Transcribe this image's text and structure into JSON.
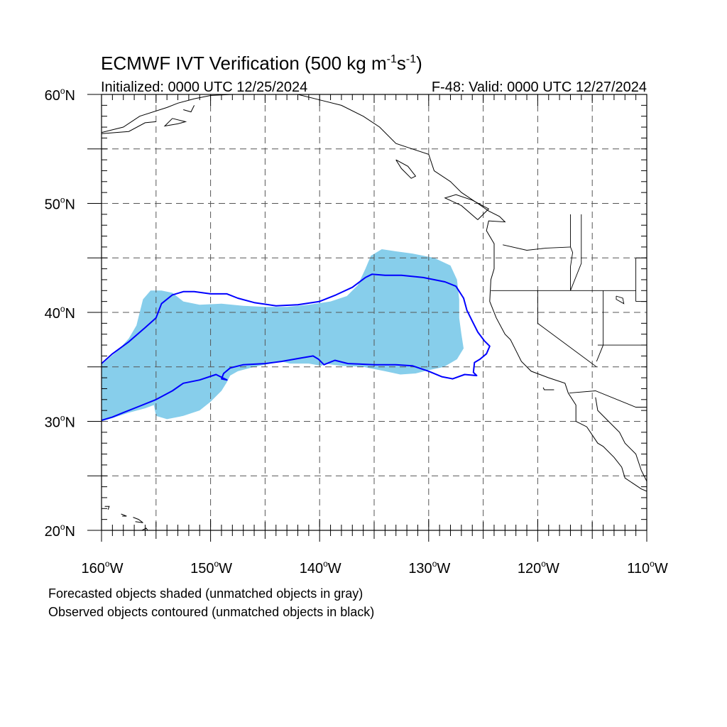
{
  "header": {
    "title_main": "ECMWF IVT Verification (500 kg m",
    "title_sup1": "-1",
    "title_mid": "s",
    "title_sup2": "-1",
    "title_end": ")",
    "init_label": "Initialized: 0000 UTC 12/25/2024",
    "valid_label": "F-48: Valid: 0000 UTC 12/27/2024"
  },
  "map": {
    "lon_range": [
      -160,
      -110
    ],
    "lat_range": [
      20,
      60
    ],
    "lat_ticks": [
      {
        "value": 60,
        "label": "60",
        "suffix": "N"
      },
      {
        "value": 50,
        "label": "50",
        "suffix": "N"
      },
      {
        "value": 40,
        "label": "40",
        "suffix": "N"
      },
      {
        "value": 30,
        "label": "30",
        "suffix": "N"
      },
      {
        "value": 20,
        "label": "20",
        "suffix": "N"
      }
    ],
    "lon_ticks": [
      {
        "value": -160,
        "label": "160",
        "suffix": "W"
      },
      {
        "value": -150,
        "label": "150",
        "suffix": "W"
      },
      {
        "value": -140,
        "label": "140",
        "suffix": "W"
      },
      {
        "value": -130,
        "label": "130",
        "suffix": "W"
      },
      {
        "value": -120,
        "label": "120",
        "suffix": "W"
      },
      {
        "value": -110,
        "label": "110",
        "suffix": "W"
      }
    ],
    "degree_symbol": "o",
    "gridlines_dashed": true,
    "grid_lons": [
      -155,
      -150,
      -145,
      -140,
      -135,
      -130,
      -125,
      -120,
      -115
    ],
    "grid_lats": [
      25,
      30,
      35,
      40,
      45,
      50,
      55
    ],
    "colors": {
      "forecast_fill": "#87ceeb",
      "observed_contour": "#0000ff",
      "coastline": "#000000",
      "grid": "#555555"
    },
    "forecast_object": [
      [
        -160,
        35.2
      ],
      [
        -158.5,
        36.5
      ],
      [
        -157.5,
        37.6
      ],
      [
        -156.8,
        38.8
      ],
      [
        -156.5,
        40
      ],
      [
        -156.2,
        41.2
      ],
      [
        -155.5,
        42
      ],
      [
        -154.5,
        42
      ],
      [
        -153.5,
        41.8
      ],
      [
        -152.5,
        41
      ],
      [
        -151,
        40.7
      ],
      [
        -149,
        40.8
      ],
      [
        -147,
        40.6
      ],
      [
        -145,
        40.5
      ],
      [
        -143,
        40.5
      ],
      [
        -141,
        40.7
      ],
      [
        -139,
        41
      ],
      [
        -137.5,
        41.5
      ],
      [
        -136.5,
        42.5
      ],
      [
        -135.8,
        44
      ],
      [
        -135.3,
        45.2
      ],
      [
        -134.3,
        45.8
      ],
      [
        -133,
        45.6
      ],
      [
        -131.5,
        45.4
      ],
      [
        -129.5,
        45
      ],
      [
        -128,
        44.3
      ],
      [
        -127.4,
        43
      ],
      [
        -127.2,
        41.2
      ],
      [
        -127.2,
        39.5
      ],
      [
        -127,
        38
      ],
      [
        -126.8,
        36.7
      ],
      [
        -127.4,
        35.7
      ],
      [
        -128.6,
        35
      ],
      [
        -130,
        34.7
      ],
      [
        -131.2,
        34.4
      ],
      [
        -132.6,
        34.3
      ],
      [
        -134,
        34.6
      ],
      [
        -136,
        35
      ],
      [
        -138,
        35.1
      ],
      [
        -139.6,
        35.3
      ],
      [
        -139.8,
        35.1
      ],
      [
        -141,
        35.3
      ],
      [
        -142.7,
        35.3
      ],
      [
        -143.5,
        35.5
      ],
      [
        -144.5,
        35.3
      ],
      [
        -146,
        35
      ],
      [
        -147.5,
        34.6
      ],
      [
        -148.2,
        34.2
      ],
      [
        -148.5,
        33.6
      ],
      [
        -149,
        32.8
      ],
      [
        -150,
        31.8
      ],
      [
        -151,
        31
      ],
      [
        -152.5,
        30.5
      ],
      [
        -154,
        30.2
      ],
      [
        -155,
        30.5
      ],
      [
        -155.2,
        31.5
      ],
      [
        -156,
        31.2
      ],
      [
        -157.5,
        30.8
      ],
      [
        -159,
        30.3
      ],
      [
        -160,
        30
      ]
    ],
    "observed_object": [
      [
        -160,
        35.3
      ],
      [
        -159,
        36.2
      ],
      [
        -157.5,
        37.3
      ],
      [
        -156,
        38.6
      ],
      [
        -155,
        39.5
      ],
      [
        -154.5,
        40.8
      ],
      [
        -153.5,
        41.6
      ],
      [
        -152.5,
        41.9
      ],
      [
        -151.5,
        41.9
      ],
      [
        -150,
        41.7
      ],
      [
        -148.5,
        41.7
      ],
      [
        -147.5,
        41.3
      ],
      [
        -146,
        40.9
      ],
      [
        -144,
        40.6
      ],
      [
        -142,
        40.7
      ],
      [
        -140,
        41
      ],
      [
        -138.5,
        41.6
      ],
      [
        -137,
        42.3
      ],
      [
        -135.8,
        43.2
      ],
      [
        -135.2,
        43.5
      ],
      [
        -134,
        43.4
      ],
      [
        -132.5,
        43.4
      ],
      [
        -130.5,
        43.2
      ],
      [
        -128.5,
        42.8
      ],
      [
        -127.5,
        42.4
      ],
      [
        -126.8,
        41.3
      ],
      [
        -126.5,
        40.2
      ],
      [
        -126,
        39.2
      ],
      [
        -125.5,
        38.2
      ],
      [
        -124.9,
        37.4
      ],
      [
        -124.4,
        36.9
      ],
      [
        -124.7,
        36.2
      ],
      [
        -125.3,
        35.7
      ],
      [
        -125.8,
        35.4
      ],
      [
        -125.9,
        34.5
      ],
      [
        -125.6,
        34.2
      ],
      [
        -126.7,
        34.3
      ],
      [
        -127.8,
        33.9
      ],
      [
        -128.8,
        34.1
      ],
      [
        -130,
        34.6
      ],
      [
        -131.5,
        35.1
      ],
      [
        -133,
        35.2
      ],
      [
        -135,
        35.2
      ],
      [
        -137.4,
        35.3
      ],
      [
        -138.6,
        35.6
      ],
      [
        -139.6,
        35.2
      ],
      [
        -140.1,
        35.7
      ],
      [
        -140.6,
        36
      ],
      [
        -141.8,
        35.8
      ],
      [
        -143.5,
        35.5
      ],
      [
        -145,
        35.3
      ],
      [
        -147,
        35.2
      ],
      [
        -148.2,
        34.9
      ],
      [
        -148.8,
        34.4
      ],
      [
        -149,
        33.9
      ],
      [
        -148.5,
        33.8
      ],
      [
        -149.5,
        34.3
      ],
      [
        -151,
        33.8
      ],
      [
        -152.5,
        33.5
      ],
      [
        -153.5,
        32.8
      ],
      [
        -155,
        32
      ],
      [
        -156.5,
        31.4
      ],
      [
        -158,
        30.8
      ],
      [
        -159,
        30.4
      ],
      [
        -160,
        30.1
      ]
    ],
    "states": [
      [
        [
          -123.2,
          46.2
        ],
        [
          -121,
          45.7
        ],
        [
          -119.2,
          45.9
        ],
        [
          -117,
          46
        ]
      ],
      [
        [
          -117,
          49
        ],
        [
          -117,
          46
        ],
        [
          -116.8,
          45.5
        ],
        [
          -117,
          44.2
        ],
        [
          -117,
          42
        ]
      ],
      [
        [
          -124.3,
          42
        ],
        [
          -120,
          42
        ],
        [
          -117,
          42
        ],
        [
          -111,
          42
        ]
      ],
      [
        [
          -120,
          42
        ],
        [
          -120,
          39
        ],
        [
          -114.6,
          35
        ]
      ],
      [
        [
          -116,
          49
        ],
        [
          -116,
          44.5
        ],
        [
          -117,
          42
        ]
      ],
      [
        [
          -111,
          45
        ],
        [
          -110,
          45
        ]
      ],
      [
        [
          -114,
          42
        ],
        [
          -114,
          37
        ],
        [
          -114.6,
          35.5
        ]
      ],
      [
        [
          -117.1,
          32.6
        ],
        [
          -114.7,
          32.8
        ],
        [
          -111,
          31.3
        ],
        [
          -110,
          31.3
        ]
      ],
      [
        [
          -114.5,
          37
        ],
        [
          -110,
          37
        ]
      ],
      [
        [
          -111,
          41
        ],
        [
          -110,
          41
        ]
      ],
      [
        [
          -111,
          45
        ],
        [
          -111,
          41
        ]
      ]
    ],
    "coastlines": [
      [
        [
          -160,
          56.5
        ],
        [
          -158,
          57
        ],
        [
          -156.5,
          58
        ],
        [
          -154,
          58.8
        ],
        [
          -153,
          59.2
        ],
        [
          -151.5,
          59.6
        ],
        [
          -150,
          59.9
        ],
        [
          -148,
          60
        ],
        [
          -146,
          60.5
        ],
        [
          -144,
          60
        ],
        [
          -142,
          60
        ],
        [
          -140,
          59.5
        ],
        [
          -138,
          59
        ],
        [
          -136,
          58
        ],
        [
          -134.5,
          57
        ],
        [
          -133,
          55.5
        ],
        [
          -131.5,
          55
        ],
        [
          -130,
          54.5
        ],
        [
          -129.5,
          53
        ],
        [
          -128,
          52
        ],
        [
          -127,
          51
        ],
        [
          -125.5,
          50
        ],
        [
          -124.5,
          49.3
        ],
        [
          -123.5,
          48.8
        ],
        [
          -123,
          48.3
        ],
        [
          -124.5,
          48.4
        ],
        [
          -124.7,
          47.5
        ],
        [
          -124,
          46.3
        ],
        [
          -124,
          44
        ],
        [
          -124.3,
          43
        ],
        [
          -124.4,
          41
        ],
        [
          -123.8,
          39.5
        ],
        [
          -123,
          38
        ],
        [
          -122.5,
          37.5
        ],
        [
          -122,
          36.5
        ],
        [
          -121.5,
          35.5
        ],
        [
          -120.6,
          34.6
        ],
        [
          -119,
          34
        ],
        [
          -117.5,
          33.5
        ],
        [
          -117.2,
          32.6
        ],
        [
          -116.5,
          31.5
        ],
        [
          -116.5,
          30
        ],
        [
          -115.5,
          29.5
        ],
        [
          -114.5,
          28
        ],
        [
          -114,
          27.7
        ],
        [
          -113,
          26.7
        ],
        [
          -112.3,
          25.8
        ],
        [
          -112,
          24.8
        ],
        [
          -110.5,
          23.8
        ],
        [
          -109.8,
          23.5
        ]
      ],
      [
        [
          -114.7,
          32.2
        ],
        [
          -114.5,
          31
        ],
        [
          -113.5,
          30
        ],
        [
          -112.5,
          29
        ],
        [
          -112,
          28
        ],
        [
          -111,
          27
        ],
        [
          -110.5,
          25.5
        ],
        [
          -110,
          24.5
        ]
      ],
      [
        [
          -125.5,
          48.5
        ],
        [
          -127,
          49.8
        ],
        [
          -128.5,
          50.5
        ],
        [
          -127.5,
          50.8
        ],
        [
          -126,
          50.3
        ],
        [
          -124.5,
          49.5
        ],
        [
          -125.5,
          48.5
        ]
      ],
      [
        [
          -133,
          54
        ],
        [
          -132.5,
          53.2
        ],
        [
          -131.6,
          52.3
        ],
        [
          -131.2,
          52.5
        ],
        [
          -131.9,
          53.4
        ],
        [
          -133,
          54
        ]
      ],
      [
        [
          -156.5,
          19.9
        ],
        [
          -155.9,
          20.2
        ],
        [
          -155.5,
          19.6
        ],
        [
          -156,
          19.3
        ],
        [
          -156.5,
          19.9
        ]
      ],
      [
        [
          -157.1,
          21.2
        ],
        [
          -156.6,
          21
        ],
        [
          -156.2,
          20.7
        ],
        [
          -156.9,
          20.8
        ]
      ],
      [
        [
          -158.2,
          21.5
        ],
        [
          -157.7,
          21.3
        ],
        [
          -158.1,
          21.3
        ]
      ],
      [
        [
          -159.7,
          22.2
        ],
        [
          -159.3,
          22.2
        ],
        [
          -159.4,
          21.9
        ]
      ],
      [
        [
          -160,
          56.4
        ],
        [
          -157.5,
          56.6
        ],
        [
          -156,
          57.4
        ],
        [
          -155,
          57.5
        ]
      ],
      [
        [
          -153.5,
          57.8
        ],
        [
          -152.3,
          57.5
        ],
        [
          -153,
          57.3
        ],
        [
          -154.2,
          57.1
        ],
        [
          -153.5,
          57.8
        ]
      ],
      [
        [
          -152.5,
          58.6
        ],
        [
          -151.8,
          58.4
        ],
        [
          -151.5,
          59
        ]
      ],
      [
        [
          -119.5,
          33.1
        ],
        [
          -119.4,
          32.9
        ],
        [
          -118.5,
          32.9
        ]
      ]
    ],
    "lakes": [
      [
        [
          -112.8,
          41.5
        ],
        [
          -112.2,
          41.3
        ],
        [
          -112.1,
          40.8
        ],
        [
          -112.8,
          41.2
        ],
        [
          -112.8,
          41.5
        ]
      ]
    ]
  },
  "footer": {
    "line1": "Forecasted objects shaded (unmatched objects in gray)",
    "line2": "Observed objects contoured (unmatched objects in black)"
  }
}
